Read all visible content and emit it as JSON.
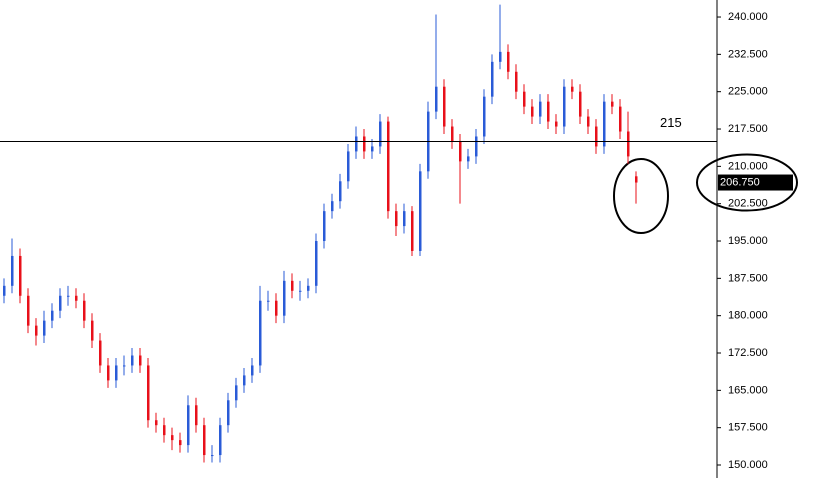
{
  "chart_data": {
    "type": "ohlc",
    "up_color": "#2a5bd7",
    "down_color": "#e8101a",
    "open": [
      184,
      186,
      192,
      184,
      178,
      176,
      179,
      181,
      184,
      184,
      183,
      179,
      175,
      170,
      167,
      170,
      170,
      172,
      170,
      159,
      158,
      156,
      155,
      154,
      162,
      158,
      152,
      152,
      158,
      163,
      166,
      168,
      170,
      183,
      183,
      180,
      187,
      185,
      185,
      186,
      195,
      201,
      203,
      207,
      213,
      216,
      213,
      214,
      219,
      201,
      198,
      201,
      193,
      209,
      221,
      226,
      218,
      215,
      211,
      212,
      216,
      224,
      231,
      233,
      229,
      225,
      222,
      220,
      223,
      219,
      218,
      226,
      225,
      220,
      218,
      214,
      223,
      222,
      217,
      208
    ],
    "high": [
      187.5,
      195.5,
      193.5,
      185.5,
      179.5,
      181,
      182.5,
      185.5,
      186,
      185.5,
      184.5,
      180.5,
      176.5,
      171.5,
      171.5,
      172,
      173.5,
      173.5,
      171.5,
      160.5,
      159.5,
      157.5,
      156.5,
      164,
      163.5,
      159.5,
      154,
      159.5,
      164.5,
      167.5,
      169.5,
      171.5,
      186,
      185,
      184.5,
      189,
      188.5,
      187,
      187.5,
      196.5,
      202.5,
      204.5,
      208.5,
      214.5,
      218,
      217.5,
      215.5,
      220.5,
      220,
      202.5,
      202.5,
      202,
      210.5,
      223,
      240.5,
      227.5,
      219.5,
      216.5,
      213.5,
      217.5,
      225.5,
      232.5,
      242.5,
      234.5,
      230.5,
      226.5,
      223.5,
      224.5,
      224.5,
      220.5,
      227.5,
      227.5,
      226.5,
      221.5,
      219.5,
      224.5,
      224.5,
      223.5,
      221,
      209
    ],
    "low": [
      182.5,
      184.5,
      182.5,
      176.5,
      174,
      174.5,
      177.5,
      179.5,
      182,
      181.5,
      177.5,
      173.5,
      168.5,
      165.5,
      165.5,
      168,
      168.5,
      168.5,
      157.5,
      156.5,
      154.5,
      153,
      152.5,
      152.5,
      156.5,
      150.5,
      150.5,
      150.5,
      156.5,
      161.5,
      164.5,
      166.5,
      168.5,
      181,
      178.5,
      178.5,
      183.5,
      183,
      183.5,
      184.5,
      193.5,
      199.5,
      201.5,
      205.5,
      211.5,
      211.5,
      211.5,
      212.5,
      199.5,
      196,
      196.5,
      192,
      192,
      207.5,
      219.5,
      216.5,
      213.5,
      202.5,
      209.5,
      210.5,
      214.5,
      222.5,
      229.5,
      227.5,
      223.5,
      220.5,
      218.5,
      218.5,
      217.5,
      216.5,
      216.5,
      223.5,
      218.5,
      216.5,
      212.5,
      212.5,
      220.5,
      215.5,
      210.5,
      202.5
    ],
    "close": [
      186,
      192,
      184,
      178,
      176,
      179,
      181,
      184,
      184,
      183,
      179,
      175,
      170,
      167,
      170,
      170,
      172,
      170,
      159,
      158,
      156,
      155,
      154,
      162,
      158,
      152,
      152,
      158,
      163,
      166,
      168,
      170,
      183,
      183,
      180,
      187,
      185,
      185,
      186,
      195,
      201,
      203,
      207,
      213,
      216,
      213,
      214,
      219,
      201,
      198,
      201,
      193,
      209,
      221,
      226,
      218,
      215,
      211,
      212,
      216,
      224,
      231,
      233,
      229,
      225,
      222,
      220,
      223,
      219,
      218,
      226,
      225,
      220,
      218,
      214,
      223,
      222,
      217,
      212,
      206.75
    ],
    "ylim": [
      147.39,
      243.42
    ],
    "yticks": [
      {
        "value": 150,
        "label": "150.000"
      },
      {
        "value": 157.5,
        "label": "157.500"
      },
      {
        "value": 165,
        "label": "165.000"
      },
      {
        "value": 172.5,
        "label": "172.500"
      },
      {
        "value": 180,
        "label": "180.000"
      },
      {
        "value": 187.5,
        "label": "187.500"
      },
      {
        "value": 195,
        "label": "195.000"
      },
      {
        "value": 202.5,
        "label": "202.500"
      },
      {
        "value": 210,
        "label": "210.000"
      },
      {
        "value": 217.5,
        "label": "217.500"
      },
      {
        "value": 225,
        "label": "225.000"
      },
      {
        "value": 232.5,
        "label": "232.500"
      },
      {
        "value": 240,
        "label": "240.000"
      }
    ],
    "hline": 215,
    "last_price": {
      "value": 206.75,
      "label": "206.750"
    }
  }
}
